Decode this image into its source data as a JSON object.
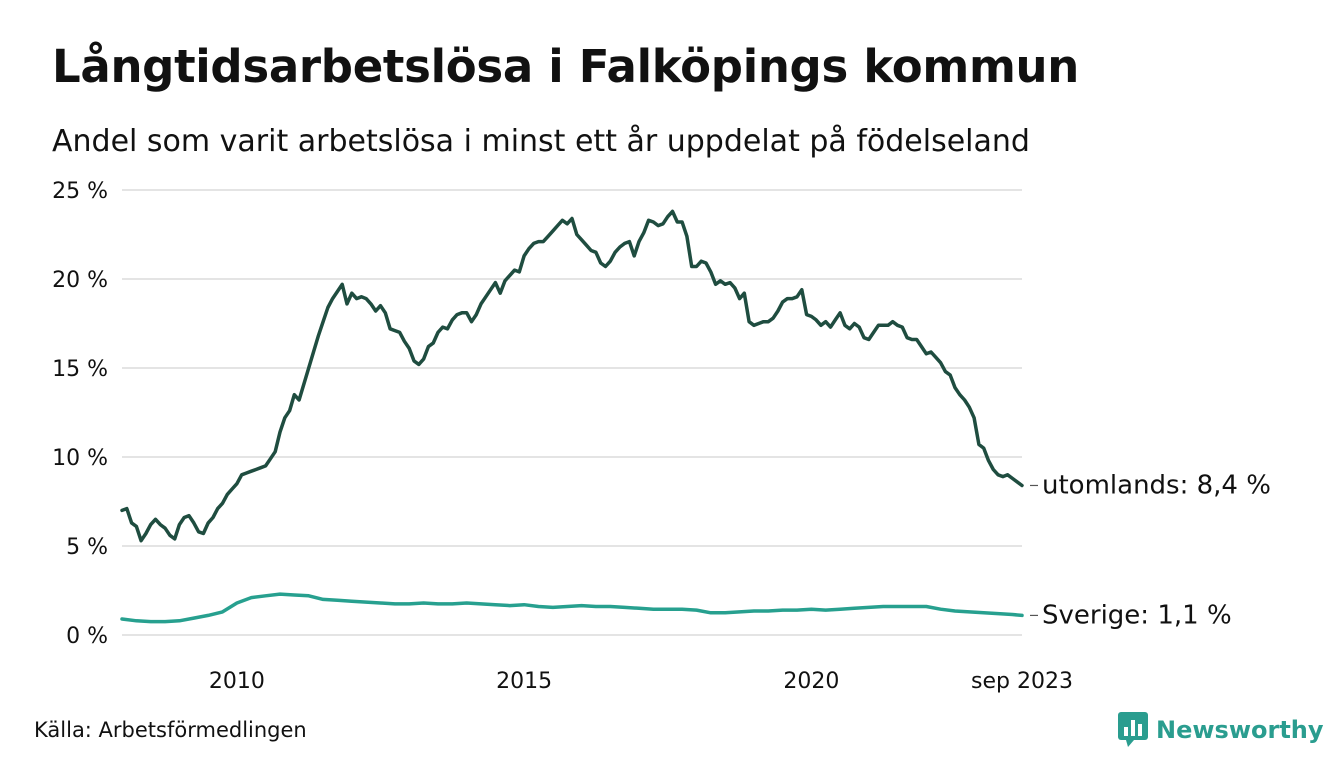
{
  "title": "Långtidsarbetslösa i Falköpings kommun",
  "subtitle": "Andel som varit arbetslösa i minst ett år uppdelat på födelseland",
  "source": "Källa: Arbetsförmedlingen",
  "brand": "Newsworthy",
  "colors": {
    "utomlands": "#1f4d40",
    "sverige": "#27a08f",
    "grid": "#dcdcdc",
    "brand": "#2a9d8f"
  },
  "chart_data": {
    "type": "line",
    "x_range": [
      "2008-01",
      "2023-09"
    ],
    "ylim": [
      0,
      25
    ],
    "y_ticks": [
      0,
      5,
      10,
      15,
      20,
      25
    ],
    "y_tick_labels": [
      "0 %",
      "5 %",
      "10 %",
      "15 %",
      "20 %",
      "25 %"
    ],
    "x_ticks": [
      "2010-01",
      "2015-01",
      "2020-01",
      "2023-09"
    ],
    "x_tick_labels": [
      "2010",
      "2015",
      "2020",
      "sep 2023"
    ],
    "grid": true,
    "series": [
      {
        "name": "utomlands",
        "end_label": "utomlands: 8,4 %",
        "color": "#1f4d40",
        "points": [
          [
            "2008-01",
            7.0
          ],
          [
            "2008-02",
            7.1
          ],
          [
            "2008-03",
            6.3
          ],
          [
            "2008-04",
            6.1
          ],
          [
            "2008-05",
            5.3
          ],
          [
            "2008-06",
            5.7
          ],
          [
            "2008-07",
            6.2
          ],
          [
            "2008-08",
            6.5
          ],
          [
            "2008-09",
            6.2
          ],
          [
            "2008-10",
            6.0
          ],
          [
            "2008-11",
            5.6
          ],
          [
            "2008-12",
            5.4
          ],
          [
            "2009-01",
            6.2
          ],
          [
            "2009-02",
            6.6
          ],
          [
            "2009-03",
            6.7
          ],
          [
            "2009-04",
            6.3
          ],
          [
            "2009-05",
            5.8
          ],
          [
            "2009-06",
            5.7
          ],
          [
            "2009-07",
            6.3
          ],
          [
            "2009-08",
            6.6
          ],
          [
            "2009-09",
            7.1
          ],
          [
            "2009-10",
            7.4
          ],
          [
            "2009-11",
            7.9
          ],
          [
            "2009-12",
            8.2
          ],
          [
            "2010-01",
            8.5
          ],
          [
            "2010-02",
            9.0
          ],
          [
            "2010-03",
            9.1
          ],
          [
            "2010-04",
            9.2
          ],
          [
            "2010-05",
            9.3
          ],
          [
            "2010-06",
            9.4
          ],
          [
            "2010-07",
            9.5
          ],
          [
            "2010-08",
            9.9
          ],
          [
            "2010-09",
            10.3
          ],
          [
            "2010-10",
            11.4
          ],
          [
            "2010-11",
            12.2
          ],
          [
            "2010-12",
            12.6
          ],
          [
            "2011-01",
            13.5
          ],
          [
            "2011-02",
            13.2
          ],
          [
            "2011-03",
            14.1
          ],
          [
            "2011-04",
            15.0
          ],
          [
            "2011-05",
            15.9
          ],
          [
            "2011-06",
            16.8
          ],
          [
            "2011-07",
            17.6
          ],
          [
            "2011-08",
            18.4
          ],
          [
            "2011-09",
            18.9
          ],
          [
            "2011-10",
            19.3
          ],
          [
            "2011-11",
            19.7
          ],
          [
            "2011-12",
            18.6
          ],
          [
            "2012-01",
            19.2
          ],
          [
            "2012-02",
            18.9
          ],
          [
            "2012-03",
            19.0
          ],
          [
            "2012-04",
            18.9
          ],
          [
            "2012-05",
            18.6
          ],
          [
            "2012-06",
            18.2
          ],
          [
            "2012-07",
            18.5
          ],
          [
            "2012-08",
            18.1
          ],
          [
            "2012-09",
            17.2
          ],
          [
            "2012-10",
            17.1
          ],
          [
            "2012-11",
            17.0
          ],
          [
            "2012-12",
            16.5
          ],
          [
            "2013-01",
            16.1
          ],
          [
            "2013-02",
            15.4
          ],
          [
            "2013-03",
            15.2
          ],
          [
            "2013-04",
            15.5
          ],
          [
            "2013-05",
            16.2
          ],
          [
            "2013-06",
            16.4
          ],
          [
            "2013-07",
            17.0
          ],
          [
            "2013-08",
            17.3
          ],
          [
            "2013-09",
            17.2
          ],
          [
            "2013-10",
            17.7
          ],
          [
            "2013-11",
            18.0
          ],
          [
            "2013-12",
            18.1
          ],
          [
            "2014-01",
            18.1
          ],
          [
            "2014-02",
            17.6
          ],
          [
            "2014-03",
            18.0
          ],
          [
            "2014-04",
            18.6
          ],
          [
            "2014-05",
            19.0
          ],
          [
            "2014-06",
            19.4
          ],
          [
            "2014-07",
            19.8
          ],
          [
            "2014-08",
            19.2
          ],
          [
            "2014-09",
            19.9
          ],
          [
            "2014-10",
            20.2
          ],
          [
            "2014-11",
            20.5
          ],
          [
            "2014-12",
            20.4
          ],
          [
            "2015-01",
            21.3
          ],
          [
            "2015-02",
            21.7
          ],
          [
            "2015-03",
            22.0
          ],
          [
            "2015-04",
            22.1
          ],
          [
            "2015-05",
            22.1
          ],
          [
            "2015-06",
            22.4
          ],
          [
            "2015-07",
            22.7
          ],
          [
            "2015-08",
            23.0
          ],
          [
            "2015-09",
            23.3
          ],
          [
            "2015-10",
            23.1
          ],
          [
            "2015-11",
            23.4
          ],
          [
            "2015-12",
            22.5
          ],
          [
            "2016-01",
            22.2
          ],
          [
            "2016-02",
            21.9
          ],
          [
            "2016-03",
            21.6
          ],
          [
            "2016-04",
            21.5
          ],
          [
            "2016-05",
            20.9
          ],
          [
            "2016-06",
            20.7
          ],
          [
            "2016-07",
            21.0
          ],
          [
            "2016-08",
            21.5
          ],
          [
            "2016-09",
            21.8
          ],
          [
            "2016-10",
            22.0
          ],
          [
            "2016-11",
            22.1
          ],
          [
            "2016-12",
            21.3
          ],
          [
            "2017-01",
            22.1
          ],
          [
            "2017-02",
            22.6
          ],
          [
            "2017-03",
            23.3
          ],
          [
            "2017-04",
            23.2
          ],
          [
            "2017-05",
            23.0
          ],
          [
            "2017-06",
            23.1
          ],
          [
            "2017-07",
            23.5
          ],
          [
            "2017-08",
            23.8
          ],
          [
            "2017-09",
            23.2
          ],
          [
            "2017-10",
            23.2
          ],
          [
            "2017-11",
            22.4
          ],
          [
            "2017-12",
            20.7
          ],
          [
            "2018-01",
            20.7
          ],
          [
            "2018-02",
            21.0
          ],
          [
            "2018-03",
            20.9
          ],
          [
            "2018-04",
            20.4
          ],
          [
            "2018-05",
            19.7
          ],
          [
            "2018-06",
            19.9
          ],
          [
            "2018-07",
            19.7
          ],
          [
            "2018-08",
            19.8
          ],
          [
            "2018-09",
            19.5
          ],
          [
            "2018-10",
            18.9
          ],
          [
            "2018-11",
            19.2
          ],
          [
            "2018-12",
            17.6
          ],
          [
            "2019-01",
            17.4
          ],
          [
            "2019-02",
            17.5
          ],
          [
            "2019-03",
            17.6
          ],
          [
            "2019-04",
            17.6
          ],
          [
            "2019-05",
            17.8
          ],
          [
            "2019-06",
            18.2
          ],
          [
            "2019-07",
            18.7
          ],
          [
            "2019-08",
            18.9
          ],
          [
            "2019-09",
            18.9
          ],
          [
            "2019-10",
            19.0
          ],
          [
            "2019-11",
            19.4
          ],
          [
            "2019-12",
            18.0
          ],
          [
            "2020-01",
            17.9
          ],
          [
            "2020-02",
            17.7
          ],
          [
            "2020-03",
            17.4
          ],
          [
            "2020-04",
            17.6
          ],
          [
            "2020-05",
            17.3
          ],
          [
            "2020-06",
            17.7
          ],
          [
            "2020-07",
            18.1
          ],
          [
            "2020-08",
            17.4
          ],
          [
            "2020-09",
            17.2
          ],
          [
            "2020-10",
            17.5
          ],
          [
            "2020-11",
            17.3
          ],
          [
            "2020-12",
            16.7
          ],
          [
            "2021-01",
            16.6
          ],
          [
            "2021-02",
            17.0
          ],
          [
            "2021-03",
            17.4
          ],
          [
            "2021-04",
            17.4
          ],
          [
            "2021-05",
            17.4
          ],
          [
            "2021-06",
            17.6
          ],
          [
            "2021-07",
            17.4
          ],
          [
            "2021-08",
            17.3
          ],
          [
            "2021-09",
            16.7
          ],
          [
            "2021-10",
            16.6
          ],
          [
            "2021-11",
            16.6
          ],
          [
            "2021-12",
            16.2
          ],
          [
            "2022-01",
            15.8
          ],
          [
            "2022-02",
            15.9
          ],
          [
            "2022-03",
            15.6
          ],
          [
            "2022-04",
            15.3
          ],
          [
            "2022-05",
            14.8
          ],
          [
            "2022-06",
            14.6
          ],
          [
            "2022-07",
            13.9
          ],
          [
            "2022-08",
            13.5
          ],
          [
            "2022-09",
            13.2
          ],
          [
            "2022-10",
            12.8
          ],
          [
            "2022-11",
            12.2
          ],
          [
            "2022-12",
            10.7
          ],
          [
            "2023-01",
            10.5
          ],
          [
            "2023-02",
            9.8
          ],
          [
            "2023-03",
            9.3
          ],
          [
            "2023-04",
            9.0
          ],
          [
            "2023-05",
            8.9
          ],
          [
            "2023-06",
            9.0
          ],
          [
            "2023-07",
            8.8
          ],
          [
            "2023-08",
            8.6
          ],
          [
            "2023-09",
            8.4
          ]
        ]
      },
      {
        "name": "Sverige",
        "end_label": "Sverige: 1,1 %",
        "color": "#27a08f",
        "points": [
          [
            "2008-01",
            0.9
          ],
          [
            "2008-04",
            0.8
          ],
          [
            "2008-07",
            0.75
          ],
          [
            "2008-10",
            0.75
          ],
          [
            "2009-01",
            0.8
          ],
          [
            "2009-04",
            0.95
          ],
          [
            "2009-07",
            1.1
          ],
          [
            "2009-10",
            1.3
          ],
          [
            "2010-01",
            1.8
          ],
          [
            "2010-04",
            2.1
          ],
          [
            "2010-07",
            2.2
          ],
          [
            "2010-10",
            2.3
          ],
          [
            "2011-01",
            2.25
          ],
          [
            "2011-04",
            2.2
          ],
          [
            "2011-07",
            2.0
          ],
          [
            "2011-10",
            1.95
          ],
          [
            "2012-01",
            1.9
          ],
          [
            "2012-04",
            1.85
          ],
          [
            "2012-07",
            1.8
          ],
          [
            "2012-10",
            1.75
          ],
          [
            "2013-01",
            1.75
          ],
          [
            "2013-04",
            1.8
          ],
          [
            "2013-07",
            1.75
          ],
          [
            "2013-10",
            1.75
          ],
          [
            "2014-01",
            1.8
          ],
          [
            "2014-04",
            1.75
          ],
          [
            "2014-07",
            1.7
          ],
          [
            "2014-10",
            1.65
          ],
          [
            "2015-01",
            1.7
          ],
          [
            "2015-04",
            1.6
          ],
          [
            "2015-07",
            1.55
          ],
          [
            "2015-10",
            1.6
          ],
          [
            "2016-01",
            1.65
          ],
          [
            "2016-04",
            1.6
          ],
          [
            "2016-07",
            1.6
          ],
          [
            "2016-10",
            1.55
          ],
          [
            "2017-01",
            1.5
          ],
          [
            "2017-04",
            1.45
          ],
          [
            "2017-07",
            1.45
          ],
          [
            "2017-10",
            1.45
          ],
          [
            "2018-01",
            1.4
          ],
          [
            "2018-04",
            1.25
          ],
          [
            "2018-07",
            1.25
          ],
          [
            "2018-10",
            1.3
          ],
          [
            "2019-01",
            1.35
          ],
          [
            "2019-04",
            1.35
          ],
          [
            "2019-07",
            1.4
          ],
          [
            "2019-10",
            1.4
          ],
          [
            "2020-01",
            1.45
          ],
          [
            "2020-04",
            1.4
          ],
          [
            "2020-07",
            1.45
          ],
          [
            "2020-10",
            1.5
          ],
          [
            "2021-01",
            1.55
          ],
          [
            "2021-04",
            1.6
          ],
          [
            "2021-07",
            1.6
          ],
          [
            "2021-10",
            1.6
          ],
          [
            "2022-01",
            1.6
          ],
          [
            "2022-04",
            1.45
          ],
          [
            "2022-07",
            1.35
          ],
          [
            "2022-10",
            1.3
          ],
          [
            "2023-01",
            1.25
          ],
          [
            "2023-04",
            1.2
          ],
          [
            "2023-07",
            1.15
          ],
          [
            "2023-09",
            1.1
          ]
        ]
      }
    ]
  }
}
